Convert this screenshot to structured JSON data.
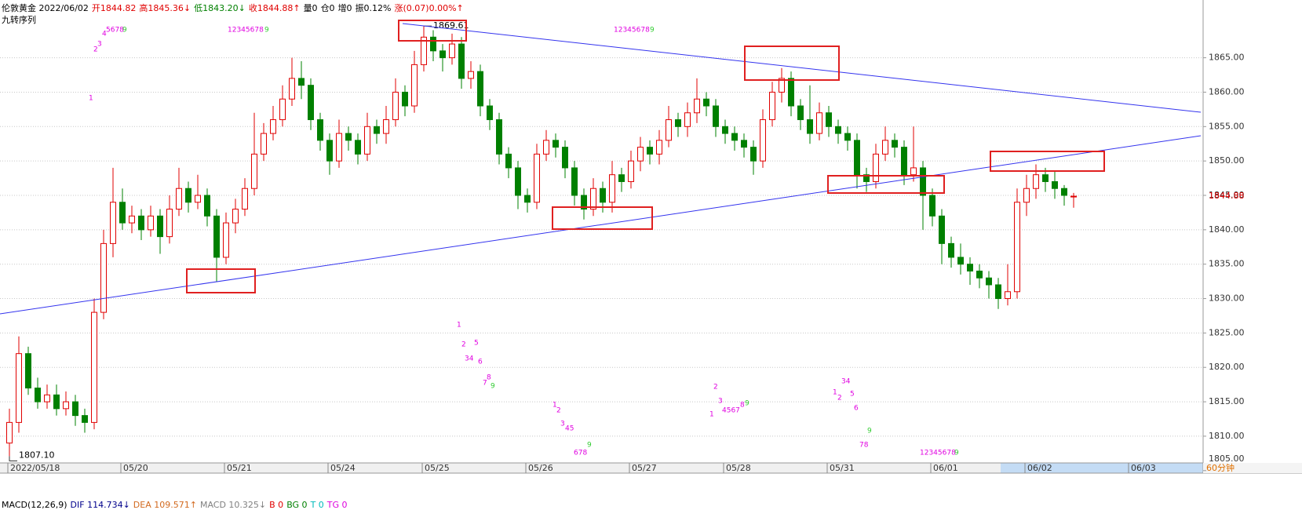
{
  "header": [
    {
      "text": "伦敦黄金 2022/06/02",
      "color": "#000000"
    },
    {
      "text": "开1844.82",
      "color": "#e00000"
    },
    {
      "text": "高1845.36↓",
      "color": "#e00000"
    },
    {
      "text": "低1843.20↓",
      "color": "#008000"
    },
    {
      "text": "收1844.88↑",
      "color": "#e00000"
    },
    {
      "text": "量0",
      "color": "#000000"
    },
    {
      "text": "仓0",
      "color": "#000000"
    },
    {
      "text": "增0",
      "color": "#000000"
    },
    {
      "text": "振0.12%",
      "color": "#000000"
    },
    {
      "text": "涨(0.07)0.00%↑",
      "color": "#e00000"
    }
  ],
  "indicator_name": "九转序列",
  "footer": [
    {
      "text": "MACD(12,26,9)",
      "color": "#000000"
    },
    {
      "text": "DIF 114.734↓",
      "color": "#00008b"
    },
    {
      "text": "DEA 109.571↑",
      "color": "#d2691e"
    },
    {
      "text": "MACD 10.325↓",
      "color": "#808080"
    },
    {
      "text": "B 0",
      "color": "#e00000"
    },
    {
      "text": "BG 0",
      "color": "#008000"
    },
    {
      "text": "T 0",
      "color": "#00bbbb"
    },
    {
      "text": "TG 0",
      "color": "#dd00dd"
    }
  ],
  "period": "60分钟",
  "chart_data": {
    "type": "candlestick",
    "up_color": "#e00000",
    "down_color": "#008000",
    "ylim": [
      1806,
      1871
    ],
    "yticks": [
      {
        "value": 1805,
        "label": "1805.00"
      },
      {
        "value": 1810,
        "label": "1810.00"
      },
      {
        "value": 1815,
        "label": "1815.00"
      },
      {
        "value": 1820,
        "label": "1820.00"
      },
      {
        "value": 1825,
        "label": "1825.00"
      },
      {
        "value": 1830,
        "label": "1830.00"
      },
      {
        "value": 1835,
        "label": "1835.00"
      },
      {
        "value": 1840,
        "label": "1840.00"
      },
      {
        "value": 1845,
        "label": "1845.00"
      },
      {
        "value": 1850,
        "label": "1850.00"
      },
      {
        "value": 1855,
        "label": "1855.00"
      },
      {
        "value": 1860,
        "label": "1860.00"
      },
      {
        "value": 1865,
        "label": "1865.00"
      }
    ],
    "grid": true,
    "last_price": 1844.88,
    "high_label": 1869.61,
    "low_label": {
      "value": 1807.1,
      "label": "1807.10"
    },
    "categories": [
      "2022/05/18",
      null,
      null,
      null,
      null,
      null,
      null,
      null,
      null,
      null,
      null,
      null,
      "05/20",
      null,
      null,
      null,
      null,
      null,
      null,
      null,
      null,
      null,
      null,
      "05/21",
      null,
      null,
      null,
      null,
      null,
      null,
      null,
      null,
      null,
      null,
      "05/24",
      null,
      null,
      null,
      null,
      null,
      null,
      null,
      null,
      null,
      "05/25",
      null,
      null,
      null,
      null,
      null,
      null,
      null,
      null,
      null,
      null,
      "05/26",
      null,
      null,
      null,
      null,
      null,
      null,
      null,
      null,
      null,
      null,
      "05/27",
      null,
      null,
      null,
      null,
      null,
      null,
      null,
      null,
      null,
      "05/28",
      null,
      null,
      null,
      null,
      null,
      null,
      null,
      null,
      null,
      null,
      "05/31",
      null,
      null,
      null,
      null,
      null,
      null,
      null,
      null,
      null,
      null,
      "06/01",
      null,
      null,
      null,
      null,
      null,
      null,
      null,
      null,
      null,
      "06/02",
      null,
      null,
      null,
      null,
      null,
      null,
      null,
      null,
      null,
      null,
      "06/03"
    ],
    "open": [
      1809,
      1812,
      1822,
      1817,
      1815,
      1816,
      1814,
      1815,
      1813,
      1812,
      1828,
      1838,
      1844,
      1841,
      1842,
      1840,
      1842,
      1839,
      1843,
      1846,
      1844,
      1845,
      1842,
      1836,
      1841,
      1843,
      1846,
      1851,
      1854,
      1856,
      1859,
      1862,
      1861,
      1856,
      1853,
      1850,
      1854,
      1853,
      1851,
      1855,
      1854,
      1856,
      1860,
      1858,
      1864,
      1868,
      1866,
      1865,
      1867,
      1862,
      1863,
      1858,
      1856,
      1851,
      1849,
      1845,
      1844,
      1851,
      1853,
      1852,
      1849,
      1845,
      1843,
      1846,
      1844,
      1848,
      1847,
      1850,
      1852,
      1851,
      1853,
      1856,
      1855,
      1857,
      1859,
      1858,
      1855,
      1854,
      1853,
      1852,
      1850,
      1856,
      1860,
      1862,
      1858,
      1856,
      1854,
      1857,
      1855,
      1854,
      1853,
      1848,
      1847,
      1851,
      1853,
      1852,
      1848,
      1849,
      1845,
      1842,
      1838,
      1836,
      1835,
      1834,
      1833,
      1832,
      1830,
      1831,
      1844,
      1846,
      1848,
      1847,
      1846,
      1844.82,
      null,
      null,
      null,
      null,
      null,
      null
    ],
    "high": [
      1814,
      1824.5,
      1823,
      1818.5,
      1817.5,
      1817.5,
      1816.5,
      1816,
      1814,
      1830,
      1840,
      1849,
      1846,
      1843.5,
      1843,
      1843.5,
      1843,
      1845,
      1849,
      1847,
      1848,
      1846,
      1843,
      1842.5,
      1844.5,
      1847.5,
      1857,
      1855.5,
      1858,
      1861,
      1865,
      1864.5,
      1862,
      1857,
      1854,
      1856,
      1855,
      1854,
      1857,
      1856,
      1858,
      1862,
      1861,
      1866,
      1869.61,
      1869,
      1867,
      1868.5,
      1868,
      1864.5,
      1864,
      1859,
      1857,
      1852,
      1850,
      1846,
      1852.5,
      1854.5,
      1854,
      1853,
      1850,
      1846,
      1847.5,
      1847,
      1850,
      1849,
      1851.5,
      1853.5,
      1853,
      1854.5,
      1858,
      1857,
      1858.5,
      1862,
      1860,
      1859,
      1856,
      1855,
      1854,
      1853,
      1857.5,
      1861.5,
      1863.5,
      1863,
      1859,
      1861,
      1858.5,
      1858,
      1856,
      1855,
      1854,
      1849,
      1852.5,
      1855,
      1854,
      1853,
      1855,
      1850,
      1846,
      1843,
      1839,
      1838,
      1836,
      1835,
      1834,
      1833,
      1835,
      1846,
      1848,
      1849.5,
      1849,
      1848.5,
      1846.5,
      1845.36,
      null,
      null,
      null,
      null,
      null,
      null
    ],
    "low": [
      1807.1,
      1810.5,
      1816,
      1814,
      1814,
      1813,
      1813,
      1811.5,
      1810.5,
      1811,
      1827,
      1836,
      1840,
      1839.5,
      1838.5,
      1839,
      1836.5,
      1838,
      1842,
      1842.5,
      1843,
      1840.5,
      1832.5,
      1835,
      1839.5,
      1842,
      1845,
      1850,
      1853,
      1855,
      1858,
      1859,
      1854.5,
      1851.5,
      1848,
      1849,
      1851.5,
      1849.5,
      1850,
      1852.5,
      1852.5,
      1855,
      1856.5,
      1857,
      1863,
      1864.5,
      1863,
      1864,
      1860.5,
      1860.5,
      1856.5,
      1854.5,
      1849.5,
      1847.5,
      1843,
      1842.5,
      1843,
      1850,
      1850.5,
      1847.5,
      1843.5,
      1841.5,
      1842,
      1842.5,
      1842.5,
      1845.5,
      1846,
      1848.5,
      1849.5,
      1849.5,
      1852,
      1853.5,
      1853.5,
      1855.5,
      1856.5,
      1853.5,
      1852.5,
      1851.5,
      1850.5,
      1848,
      1849,
      1855,
      1858.5,
      1856.5,
      1854.5,
      1852.5,
      1853,
      1853.5,
      1852.5,
      1851.5,
      1846,
      1845.5,
      1846,
      1850,
      1850.5,
      1846.5,
      1847,
      1840,
      1840.5,
      1835,
      1834.5,
      1833.5,
      1832,
      1831.5,
      1830,
      1828.5,
      1829,
      1830,
      1842,
      1844.5,
      1845.5,
      1844.5,
      1843.5,
      1843.2,
      null,
      null,
      null,
      null,
      null,
      null
    ],
    "close": [
      1812,
      1822,
      1817,
      1815,
      1816,
      1814,
      1815,
      1813,
      1812,
      1828,
      1838,
      1844,
      1841,
      1842,
      1840,
      1842,
      1839,
      1843,
      1846,
      1844,
      1845,
      1842,
      1836,
      1841,
      1843,
      1846,
      1851,
      1854,
      1856,
      1859,
      1862,
      1861,
      1856,
      1853,
      1850,
      1854,
      1853,
      1851,
      1855,
      1854,
      1856,
      1860,
      1858,
      1864,
      1868,
      1866,
      1865,
      1867,
      1862,
      1863,
      1858,
      1856,
      1851,
      1849,
      1845,
      1844,
      1851,
      1853,
      1852,
      1849,
      1845,
      1843,
      1846,
      1844,
      1848,
      1847,
      1850,
      1852,
      1851,
      1853,
      1856,
      1855,
      1857,
      1859,
      1858,
      1855,
      1854,
      1853,
      1852,
      1850,
      1856,
      1860,
      1862,
      1858,
      1856,
      1854,
      1857,
      1855,
      1854,
      1853,
      1848,
      1847,
      1851,
      1853,
      1852,
      1848,
      1849,
      1845,
      1842,
      1838,
      1836,
      1835,
      1834,
      1833,
      1832,
      1830,
      1831,
      1844,
      1846,
      1848,
      1847,
      1846,
      1845,
      1844.88,
      null,
      null,
      null,
      null,
      null,
      null
    ]
  },
  "nine_turn": [
    {
      "text": "1",
      "color": "#e000e0"
    },
    {
      "text": "2",
      "color": "#e000e0"
    },
    {
      "text": "3",
      "color": "#e000e0"
    },
    {
      "text": "4",
      "color": "#e000e0"
    },
    {
      "text": "5678",
      "color": "#e000e0"
    },
    {
      "text": "9",
      "color": "#33cc33"
    },
    {
      "text": "12345678",
      "color": "#e000e0"
    },
    {
      "text": "9",
      "color": "#33cc33"
    },
    {
      "text": "12345678",
      "color": "#e000e0"
    },
    {
      "text": "9",
      "color": "#33cc33"
    },
    {
      "text": "1",
      "color": "#e000e0"
    },
    {
      "text": "2",
      "color": "#e000e0"
    },
    {
      "text": "5",
      "color": "#e000e0"
    },
    {
      "text": "34",
      "color": "#e000e0"
    },
    {
      "text": "6",
      "color": "#e000e0"
    },
    {
      "text": "8",
      "color": "#e000e0"
    },
    {
      "text": "7",
      "color": "#e000e0"
    },
    {
      "text": "9",
      "color": "#33cc33"
    },
    {
      "text": "1",
      "color": "#e000e0"
    },
    {
      "text": "2",
      "color": "#e000e0"
    },
    {
      "text": "3",
      "color": "#e000e0"
    },
    {
      "text": "45",
      "color": "#e000e0"
    },
    {
      "text": "9",
      "color": "#33cc33"
    },
    {
      "text": "678",
      "color": "#e000e0"
    },
    {
      "text": "2",
      "color": "#e000e0"
    },
    {
      "text": "3",
      "color": "#e000e0"
    },
    {
      "text": "1",
      "color": "#e000e0"
    },
    {
      "text": "4567",
      "color": "#e000e0"
    },
    {
      "text": "8",
      "color": "#e000e0"
    },
    {
      "text": "9",
      "color": "#33cc33"
    },
    {
      "text": "34",
      "color": "#e000e0"
    },
    {
      "text": "1",
      "color": "#e000e0"
    },
    {
      "text": "2",
      "color": "#e000e0"
    },
    {
      "text": "5",
      "color": "#e000e0"
    },
    {
      "text": "6",
      "color": "#e000e0"
    },
    {
      "text": "9",
      "color": "#33cc33"
    },
    {
      "text": "78",
      "color": "#e000e0"
    },
    {
      "text": "12345678",
      "color": "#e000e0"
    },
    {
      "text": "9",
      "color": "#33cc33"
    }
  ]
}
